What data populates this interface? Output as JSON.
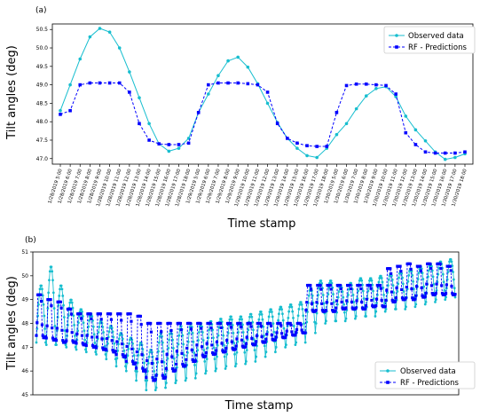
{
  "colors": {
    "observed": "#17becf",
    "predicted": "#0000ff"
  },
  "chart_data": [
    {
      "type": "line",
      "panel_label": "(a)",
      "xlabel": "Time stamp",
      "ylabel": "Tilt angles (deg)",
      "ylim": [
        46.85,
        50.65
      ],
      "yticks": [
        "47.0",
        "47.5",
        "48.0",
        "48.5",
        "49.0",
        "49.5",
        "50.0",
        "50.5"
      ],
      "grid": false,
      "legend": "top-right",
      "categories": [
        "1/28/2019 5:00",
        "1/28/2019 6:00",
        "1/28/2019 7:00",
        "1/28/2019 8:00",
        "1/28/2019 9:00",
        "1/28/2019 10:00",
        "1/28/2019 11:00",
        "1/28/2019 12:00",
        "1/28/2019 13:00",
        "1/28/2019 14:00",
        "1/28/2019 15:00",
        "1/28/2019 16:00",
        "1/28/2019 17:00",
        "1/28/2019 18:00",
        "1/29/2019 5:00",
        "1/29/2019 6:00",
        "1/29/2019 7:00",
        "1/29/2019 8:00",
        "1/29/2019 9:00",
        "1/29/2019 10:00",
        "1/29/2019 11:00",
        "1/29/2019 12:00",
        "1/29/2019 13:00",
        "1/29/2019 14:00",
        "1/29/2019 15:00",
        "1/29/2019 16:00",
        "1/29/2019 17:00",
        "1/29/2019 18:00",
        "1/30/2019 5:00",
        "1/30/2019 6:00",
        "1/30/2019 7:00",
        "1/30/2019 8:00",
        "1/30/2019 9:00",
        "1/30/2019 10:00",
        "1/30/2019 11:00",
        "1/30/2019 12:00",
        "1/30/2019 13:00",
        "1/30/2019 14:00",
        "1/30/2019 15:00",
        "1/30/2019 16:00",
        "1/30/2019 17:00",
        "1/30/2019 18:00"
      ],
      "series": [
        {
          "name": "Observed data",
          "color": "#17becf",
          "marker": "circle",
          "linestyle": "solid",
          "values": [
            48.3,
            49.0,
            49.7,
            50.3,
            50.53,
            50.43,
            50.0,
            49.35,
            48.65,
            47.95,
            47.4,
            47.2,
            47.28,
            47.55,
            48.25,
            48.75,
            49.25,
            49.65,
            49.75,
            49.48,
            49.03,
            48.5,
            47.98,
            47.55,
            47.28,
            47.08,
            47.03,
            47.28,
            47.65,
            47.95,
            48.35,
            48.7,
            48.9,
            48.95,
            48.68,
            48.15,
            47.78,
            47.48,
            47.18,
            46.98,
            47.03,
            47.13
          ]
        },
        {
          "name": "RF - Predictions",
          "color": "#0000ff",
          "marker": "square",
          "linestyle": "dashed",
          "values": [
            48.2,
            48.3,
            49.0,
            49.05,
            49.05,
            49.05,
            49.05,
            48.8,
            47.95,
            47.5,
            47.4,
            47.38,
            47.38,
            47.42,
            48.25,
            49.0,
            49.05,
            49.05,
            49.05,
            49.03,
            49.0,
            48.8,
            47.95,
            47.55,
            47.42,
            47.35,
            47.33,
            47.33,
            48.25,
            48.98,
            49.02,
            49.02,
            49.0,
            48.98,
            48.75,
            47.7,
            47.38,
            47.18,
            47.15,
            47.15,
            47.15,
            47.18
          ]
        }
      ]
    },
    {
      "type": "line",
      "panel_label": "(b)",
      "xlabel": "Time stamp",
      "ylabel": "Tilt angles (deg)",
      "ylim": [
        45,
        51
      ],
      "yticks": [
        "45",
        "46",
        "47",
        "48",
        "49",
        "50",
        "51"
      ],
      "grid": false,
      "legend": "bottom-right",
      "x_tick_labels_visible": false,
      "series": [
        {
          "name": "Observed data",
          "color": "#17becf",
          "marker": "circle",
          "linestyle": "solid"
        },
        {
          "name": "RF - Predictions",
          "color": "#0000ff",
          "marker": "square",
          "linestyle": "dashed"
        }
      ],
      "day_count": 42,
      "points_per_day": 14,
      "observed_daily_peak": [
        49.6,
        50.4,
        49.6,
        49.0,
        48.6,
        48.4,
        48.1,
        47.9,
        47.6,
        47.4,
        47.2,
        46.9,
        47.6,
        47.7,
        47.9,
        48.0,
        48.0,
        48.1,
        48.2,
        48.3,
        48.3,
        48.4,
        48.5,
        48.6,
        48.7,
        48.8,
        48.9,
        49.5,
        49.8,
        49.8,
        49.6,
        49.7,
        49.9,
        49.9,
        50.0,
        50.1,
        50.2,
        50.3,
        50.4,
        50.5,
        50.6,
        50.7
      ],
      "observed_daily_trough": [
        47.2,
        47.1,
        47.1,
        47.0,
        46.9,
        46.8,
        46.7,
        46.5,
        46.2,
        46.0,
        45.6,
        45.2,
        45.3,
        45.5,
        45.6,
        45.7,
        45.9,
        46.0,
        46.1,
        46.2,
        46.3,
        46.4,
        46.6,
        46.8,
        47.0,
        47.1,
        47.2,
        47.6,
        48.0,
        48.1,
        48.1,
        48.2,
        48.3,
        48.3,
        48.5,
        48.6,
        48.6,
        48.7,
        48.8,
        48.9,
        49.0,
        49.1
      ],
      "predicted_daily_high": [
        49.2,
        49.0,
        48.9,
        48.6,
        48.4,
        48.4,
        48.4,
        48.4,
        48.4,
        48.4,
        48.3,
        48.0,
        48.0,
        48.0,
        48.0,
        48.0,
        48.0,
        48.0,
        48.0,
        48.0,
        48.0,
        48.0,
        48.0,
        48.0,
        48.0,
        48.0,
        48.0,
        49.6,
        49.6,
        49.6,
        49.6,
        49.6,
        49.6,
        49.6,
        49.6,
        50.3,
        50.4,
        50.5,
        50.4,
        50.5,
        50.5,
        50.4
      ],
      "predicted_daily_low": [
        47.4,
        47.3,
        47.2,
        47.2,
        47.1,
        47.0,
        46.9,
        46.8,
        46.6,
        46.3,
        46.0,
        45.6,
        45.7,
        46.0,
        46.2,
        46.4,
        46.6,
        46.7,
        46.8,
        46.9,
        47.0,
        47.1,
        47.2,
        47.3,
        47.4,
        47.5,
        47.6,
        48.5,
        48.5,
        48.5,
        48.6,
        48.6,
        48.6,
        48.7,
        48.7,
        48.9,
        49.0,
        49.0,
        49.1,
        49.2,
        49.2,
        49.2
      ]
    }
  ]
}
